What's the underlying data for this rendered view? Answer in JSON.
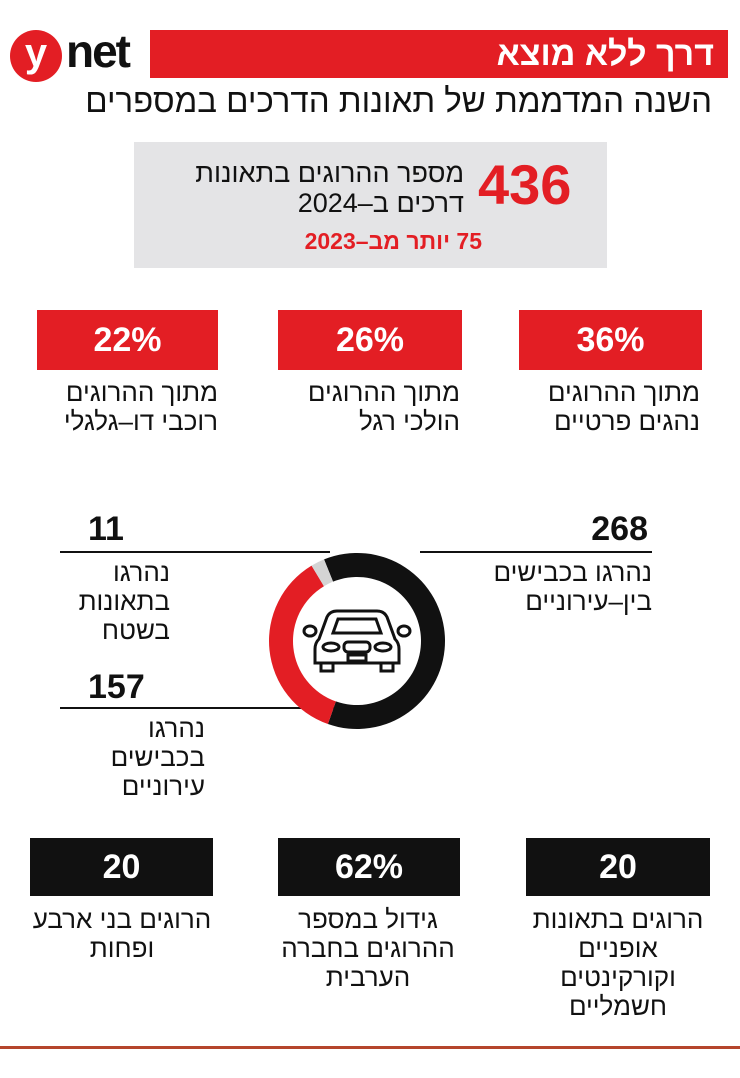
{
  "header": {
    "logo": "ynet",
    "title": "דרך ללא מוצא",
    "subtitle": "השנה המדממת של תאונות הדרכים במספרים"
  },
  "summary": {
    "value": "436",
    "text": "מספר ההרוגים בתאונות דרכים ב–2024",
    "change": "75 יותר מב–2023"
  },
  "top_stats": [
    {
      "value": "36%",
      "label": "מתוך ההרוגים נהגים פרטיים"
    },
    {
      "value": "26%",
      "label": "מתוך ההרוגים הולכי רגל"
    },
    {
      "value": "22%",
      "label": "מתוך ההרוגים רוכבי דו–גלגלי"
    }
  ],
  "chart_data": {
    "type": "pie",
    "donut": true,
    "center_icon": "car-icon",
    "slices": [
      {
        "value": 268,
        "label": "נהרגו בכבישים בין–עירוניים",
        "color": "#111111"
      },
      {
        "value": 157,
        "label": "נהרגו בכבישים עירוניים",
        "color": "#e31e24"
      },
      {
        "value": 11,
        "label": "נהרגו בתאונות בשטח",
        "color": "#d4d4d4"
      }
    ]
  },
  "donut_labels": {
    "v268": "268",
    "v157": "157",
    "v11": "11"
  },
  "bottom_stats": [
    {
      "value": "20",
      "label": "הרוגים בתאונות אופניים וקורקינטים חשמליים"
    },
    {
      "value": "62%",
      "label": "גידול במספר ההרוגים בחברה הערבית"
    },
    {
      "value": "20",
      "label": "הרוגים בני ארבע ופחות"
    }
  ]
}
